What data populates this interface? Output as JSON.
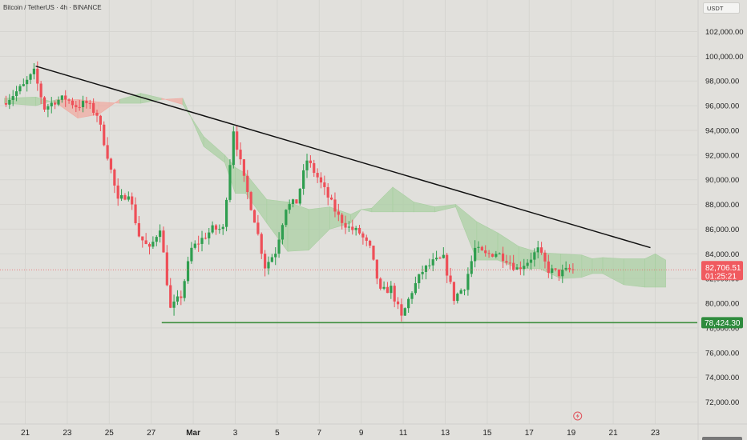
{
  "header": {
    "title": "Bitcoin / TetherUS · 4h · BINANCE",
    "currency": "USDT"
  },
  "colors": {
    "up": "#2f9e4f",
    "down": "#ee4f58",
    "cloud_bull": "#a9cfa2",
    "cloud_bear": "#f0a9a1",
    "support_line": "#3e8e3e",
    "trend_line": "#111111",
    "price_badge": "#f05a5f",
    "support_badge": "#2e8b3d"
  },
  "chart_data": {
    "type": "candlestick",
    "symbol": "Bitcoin / TetherUS",
    "interval": "4h",
    "exchange": "BINANCE",
    "y_axis": {
      "range": [
        70500,
        104000
      ],
      "ticks": [
        72000,
        74000,
        76000,
        78000,
        80000,
        82000,
        84000,
        86000,
        88000,
        90000,
        92000,
        94000,
        96000,
        98000,
        100000,
        102000
      ],
      "tick_labels": [
        "72,000.00",
        "74,000.00",
        "76,000.00",
        "78,000.00",
        "80,000.00",
        "82,000.00",
        "84,000.00",
        "86,000.00",
        "88,000.00",
        "90,000.00",
        "92,000.00",
        "94,000.00",
        "96,000.00",
        "98,000.00",
        "100,000.00",
        "102,000.00"
      ]
    },
    "x_axis": {
      "range": [
        "Feb 20",
        "Mar 24"
      ],
      "ticks": [
        "Feb 21",
        "Feb 23",
        "Feb 25",
        "Feb 27",
        "Mar 1",
        "Mar 3",
        "Mar 5",
        "Mar 7",
        "Mar 9",
        "Mar 11",
        "Mar 13",
        "Mar 15",
        "Mar 17",
        "Mar 19",
        "Mar 21",
        "Mar 23"
      ],
      "tick_labels": [
        "21",
        "23",
        "25",
        "27",
        "Mar",
        "3",
        "5",
        "7",
        "9",
        "11",
        "13",
        "15",
        "17",
        "19",
        "21",
        "23"
      ]
    },
    "price_path": [
      [
        "Feb 20",
        96200
      ],
      [
        "Feb 21",
        97600
      ],
      [
        "Feb 21 12:00",
        98700
      ],
      [
        "Feb 22",
        95800
      ],
      [
        "Feb 22 12:00",
        96400
      ],
      [
        "Feb 23",
        96600
      ],
      [
        "Feb 23 12:00",
        96000
      ],
      [
        "Feb 24",
        96200
      ],
      [
        "Feb 24 12:00",
        95300
      ],
      [
        "Feb 25",
        92000
      ],
      [
        "Feb 25 12:00",
        88200
      ],
      [
        "Feb 26",
        89000
      ],
      [
        "Feb 26 12:00",
        85500
      ],
      [
        "Feb 27",
        84300
      ],
      [
        "Feb 27 12:00",
        86200
      ],
      [
        "Feb 28",
        79500
      ],
      [
        "Feb 28 12:00",
        80600
      ],
      [
        "Mar 1",
        84400
      ],
      [
        "Mar 1 12:00",
        85200
      ],
      [
        "Mar 2",
        86000
      ],
      [
        "Mar 2 12:00",
        86000
      ],
      [
        "Mar 3",
        94100
      ],
      [
        "Mar 3 12:00",
        90000
      ],
      [
        "Mar 4",
        86800
      ],
      [
        "Mar 4 12:00",
        83000
      ],
      [
        "Mar 5",
        84200
      ],
      [
        "Mar 5 12:00",
        87800
      ],
      [
        "Mar 6",
        88200
      ],
      [
        "Mar 6 12:00",
        91600
      ],
      [
        "Mar 7",
        90200
      ],
      [
        "Mar 7 12:00",
        88600
      ],
      [
        "Mar 8",
        87000
      ],
      [
        "Mar 8 12:00",
        86100
      ],
      [
        "Mar 9",
        85700
      ],
      [
        "Mar 9 12:00",
        84400
      ],
      [
        "Mar 10",
        80900
      ],
      [
        "Mar 10 12:00",
        81200
      ],
      [
        "Mar 11",
        78800
      ],
      [
        "Mar 11 12:00",
        81000
      ],
      [
        "Mar 12",
        82600
      ],
      [
        "Mar 12 12:00",
        83300
      ],
      [
        "Mar 13",
        83600
      ],
      [
        "Mar 13 12:00",
        80400
      ],
      [
        "Mar 14",
        81400
      ],
      [
        "Mar 14 12:00",
        84400
      ],
      [
        "Mar 15",
        83900
      ],
      [
        "Mar 15 12:00",
        84100
      ],
      [
        "Mar 16",
        83600
      ],
      [
        "Mar 16 12:00",
        82800
      ],
      [
        "Mar 17",
        83400
      ],
      [
        "Mar 17 12:00",
        84300
      ],
      [
        "Mar 18",
        82700
      ],
      [
        "Mar 18 12:00",
        82400
      ],
      [
        "Mar 19",
        82706.51
      ]
    ],
    "ichimoku_cloud": {
      "span_a": [
        [
          "Feb 20",
          96600
        ],
        [
          "Feb 21 12:00",
          96700
        ],
        [
          "Feb 22 12:00",
          96200
        ],
        [
          "Feb 23 12:00",
          95000
        ],
        [
          "Feb 24 12:00",
          95300
        ],
        [
          "Feb 25 12:00",
          96500
        ],
        [
          "Feb 26 12:00",
          97000
        ],
        [
          "Feb 27 12:00",
          96600
        ],
        [
          "Feb 28 12:00",
          96100
        ],
        [
          "Mar 1 12:00",
          93500
        ],
        [
          "Mar 2 12:00",
          92000
        ],
        [
          "Mar 3",
          91000
        ],
        [
          "Mar 3 12:00",
          90500
        ],
        [
          "Mar 4 12:00",
          88400
        ],
        [
          "Mar 5 12:00",
          88200
        ],
        [
          "Mar 6 12:00",
          87600
        ],
        [
          "Mar 7 12:00",
          87800
        ],
        [
          "Mar 8 12:00",
          87200
        ],
        [
          "Mar 9",
          87600
        ],
        [
          "Mar 9 12:00",
          87700
        ],
        [
          "Mar 10 12:00",
          89400
        ],
        [
          "Mar 11 12:00",
          88200
        ],
        [
          "Mar 12 12:00",
          87800
        ],
        [
          "Mar 13 12:00",
          88000
        ],
        [
          "Mar 14 12:00",
          86600
        ],
        [
          "Mar 15 12:00",
          85700
        ],
        [
          "Mar 16 12:00",
          84600
        ],
        [
          "Mar 17 12:00",
          84100
        ],
        [
          "Mar 18 12:00",
          84000
        ],
        [
          "Mar 19 12:00",
          83900
        ],
        [
          "Mar 20",
          83600
        ],
        [
          "Mar 20 12:00",
          83700
        ],
        [
          "Mar 21 12:00",
          83600
        ],
        [
          "Mar 22 12:00",
          83600
        ],
        [
          "Mar 23",
          84000
        ],
        [
          "Mar 23 12:00",
          83500
        ]
      ],
      "span_b": [
        [
          "Feb 20",
          96200
        ],
        [
          "Feb 21 12:00",
          96000
        ],
        [
          "Feb 22 12:00",
          96500
        ],
        [
          "Feb 23 12:00",
          96500
        ],
        [
          "Feb 24 12:00",
          96300
        ],
        [
          "Feb 25 12:00",
          96200
        ],
        [
          "Feb 26 12:00",
          96200
        ],
        [
          "Feb 27 12:00",
          96500
        ],
        [
          "Feb 28 12:00",
          96600
        ],
        [
          "Mar 1 12:00",
          92700
        ],
        [
          "Mar 2 12:00",
          91400
        ],
        [
          "Mar 3",
          88900
        ],
        [
          "Mar 3 12:00",
          88900
        ],
        [
          "Mar 4 12:00",
          86500
        ],
        [
          "Mar 5 12:00",
          84200
        ],
        [
          "Mar 6 12:00",
          84300
        ],
        [
          "Mar 7 12:00",
          86000
        ],
        [
          "Mar 8 12:00",
          86500
        ],
        [
          "Mar 9",
          87600
        ],
        [
          "Mar 9 12:00",
          87400
        ],
        [
          "Mar 10 12:00",
          87400
        ],
        [
          "Mar 11 12:00",
          87400
        ],
        [
          "Mar 12 12:00",
          87400
        ],
        [
          "Mar 13 12:00",
          87800
        ],
        [
          "Mar 14 12:00",
          83500
        ],
        [
          "Mar 15 12:00",
          83500
        ],
        [
          "Mar 16 12:00",
          82800
        ],
        [
          "Mar 17 12:00",
          82800
        ],
        [
          "Mar 18 12:00",
          82000
        ],
        [
          "Mar 19 12:00",
          82100
        ],
        [
          "Mar 20",
          82400
        ],
        [
          "Mar 20 12:00",
          82400
        ],
        [
          "Mar 21 12:00",
          81500
        ],
        [
          "Mar 22 12:00",
          81300
        ],
        [
          "Mar 23",
          81300
        ],
        [
          "Mar 23 12:00",
          81300
        ]
      ]
    },
    "trend_line": {
      "start": [
        "Feb 21 12:00",
        99200
      ],
      "end": [
        "Mar 23",
        84500
      ]
    },
    "support_line": {
      "start": [
        "Feb 27 12:00",
        78424.3
      ],
      "end": [
        "Mar 24",
        78424.3
      ]
    },
    "last_price": {
      "value": "82,706.51",
      "countdown": "01:25:21",
      "level": 82706.51
    },
    "support_level": {
      "value": "78,424.30",
      "level": 78424.3
    }
  }
}
